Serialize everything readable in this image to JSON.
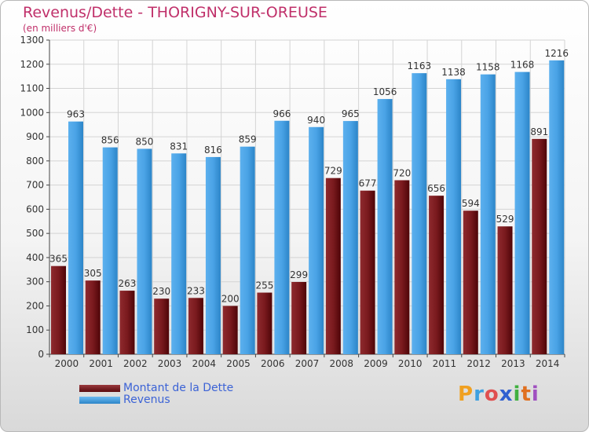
{
  "title": "Revenus/Dette - THORIGNY-SUR-OREUSE",
  "subtitle": "(en milliers d'€)",
  "logo": {
    "text": "Proxiti",
    "letters": [
      "P",
      "r",
      "o",
      "x",
      "i",
      "t",
      "i"
    ],
    "colors": [
      "#f0a020",
      "#3ea0e0",
      "#e05050",
      "#3060d0",
      "#40b040",
      "#e07020",
      "#a050c0"
    ]
  },
  "legend": [
    {
      "label": "Montant de la Dette",
      "color": "#7a1a1e"
    },
    {
      "label": "Revenus",
      "color": "#4aa3e6"
    }
  ],
  "chart_data": {
    "type": "bar",
    "categories": [
      "2000",
      "2001",
      "2002",
      "2003",
      "2004",
      "2005",
      "2006",
      "2007",
      "2008",
      "2009",
      "2010",
      "2011",
      "2012",
      "2013",
      "2014"
    ],
    "series": [
      {
        "name": "Montant de la Dette",
        "color": "#7a1a1e",
        "values": [
          365,
          305,
          263,
          230,
          233,
          200,
          255,
          299,
          729,
          677,
          720,
          656,
          594,
          529,
          891
        ]
      },
      {
        "name": "Revenus",
        "color": "#4aa3e6",
        "values": [
          963,
          856,
          850,
          831,
          816,
          859,
          966,
          940,
          965,
          1056,
          1163,
          1138,
          1158,
          1168,
          1216
        ]
      }
    ],
    "ylim": [
      0,
      1300
    ],
    "yticks": [
      0,
      100,
      200,
      300,
      400,
      500,
      600,
      700,
      800,
      900,
      1000,
      1100,
      1200,
      1300
    ],
    "grid": true,
    "legend_position": "bottom-left"
  }
}
